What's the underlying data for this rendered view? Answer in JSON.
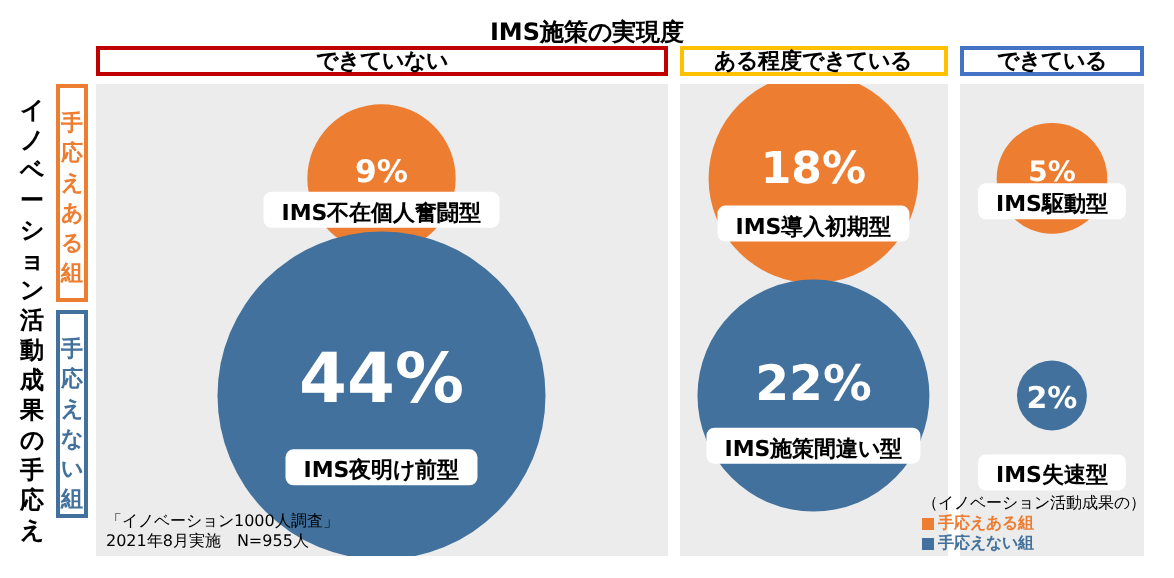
{
  "chart_data": {
    "type": "other",
    "title": "IMS施策の実現度",
    "ylabel": "イノベーション活動成果の手応え",
    "legend_title": "（イノベーション活動成果の）",
    "legend": "bottom right",
    "categories": [
      "できていない",
      "ある程度できている",
      "できている"
    ],
    "series": [
      {
        "name": "手応えある組",
        "color": "#ed7d31",
        "values": [
          9,
          18,
          5
        ],
        "value_labels": [
          "9%",
          "18%",
          "5%"
        ]
      },
      {
        "name": "手応えない組",
        "color": "#41719c",
        "values": [
          44,
          22,
          2
        ],
        "value_labels": [
          "44%",
          "22%",
          "2%"
        ]
      }
    ],
    "annotations": [
      {
        "text": "IMS不在個人奮闘型",
        "x": "できていない"
      },
      {
        "text": "IMS導入初期型",
        "x": "ある程度できている"
      },
      {
        "text": "IMS駆動型",
        "x": "できている"
      },
      {
        "text": "IMS夜明け前型",
        "x": "できていない"
      },
      {
        "text": "IMS施策間違い型",
        "x": "ある程度できている"
      },
      {
        "text": "IMS失速型",
        "x": "できている"
      },
      "手応えある組",
      "手応えない組",
      "「イノベーション1000人調査」",
      "2021年8月実施　N=955人"
    ]
  }
}
